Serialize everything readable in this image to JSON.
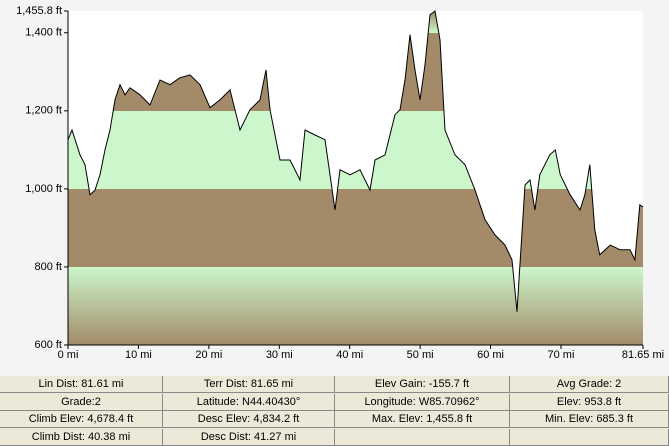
{
  "chart_data": {
    "type": "area",
    "x": [
      0,
      0.57,
      1.7,
      2.41,
      3.12,
      3.83,
      4.54,
      5.25,
      5.96,
      6.67,
      7.38,
      8.09,
      8.8,
      10.22,
      11.64,
      13.06,
      14.48,
      15.9,
      17.32,
      18.74,
      20.16,
      21.58,
      23.0,
      24.42,
      25.84,
      27.26,
      28.12,
      28.68,
      30.1,
      31.52,
      32.94,
      33.65,
      35.07,
      36.49,
      37.2,
      37.91,
      38.62,
      40.04,
      41.46,
      42.88,
      43.59,
      45.01,
      46.43,
      47.14,
      47.85,
      48.56,
      49.27,
      49.98,
      50.69,
      51.4,
      52.11,
      52.82,
      53.53,
      54.95,
      56.37,
      57.79,
      59.21,
      60.63,
      62.05,
      63.05,
      63.76,
      64.19,
      64.9,
      65.6,
      66.3,
      67.0,
      68.4,
      69.2,
      69.9,
      71.3,
      72.7,
      73.4,
      74.1,
      74.8,
      75.5,
      77.0,
      78.4,
      79.8,
      80.5,
      81.2,
      81.65
    ],
    "values": [
      1126,
      1151,
      1087,
      1062,
      985,
      997,
      1036,
      1100,
      1151,
      1228,
      1267,
      1241,
      1259,
      1241,
      1215,
      1279,
      1267,
      1285,
      1292,
      1267,
      1208,
      1228,
      1254,
      1151,
      1203,
      1228,
      1305,
      1203,
      1074,
      1074,
      1023,
      1151,
      1138,
      1126,
      1036,
      946,
      1049,
      1036,
      1049,
      997,
      1074,
      1087,
      1190,
      1203,
      1279,
      1395,
      1305,
      1228,
      1318,
      1446,
      1455.8,
      1382,
      1151,
      1087,
      1062,
      997,
      921,
      882,
      856,
      818,
      685.3,
      808,
      1010,
      1023,
      946,
      1036,
      1087,
      1100,
      1036,
      985,
      946,
      985,
      1062,
      895,
      831,
      856,
      844,
      844,
      818,
      959,
      953.8
    ],
    "line_color": "#000000",
    "band_colors": [
      "#a38a68",
      "#ccf7cc"
    ],
    "xlim": [
      0,
      81.65
    ],
    "xticks": [
      {
        "value": 0,
        "label": "0 mi"
      },
      {
        "value": 10,
        "label": "10 mi"
      },
      {
        "value": 20,
        "label": "20 mi"
      },
      {
        "value": 30,
        "label": "30 mi"
      },
      {
        "value": 40,
        "label": "40 mi"
      },
      {
        "value": 50,
        "label": "50 mi"
      },
      {
        "value": 60,
        "label": "60 mi"
      },
      {
        "value": 70,
        "label": "70 mi"
      },
      {
        "value": 81.65,
        "label": "81.65 mi"
      }
    ],
    "ylim": [
      600,
      1455.8
    ],
    "yticks": [
      {
        "value": 600,
        "label": "600 ft"
      },
      {
        "value": 800,
        "label": "800 ft"
      },
      {
        "value": 1000,
        "label": "1,000 ft"
      },
      {
        "value": 1200,
        "label": "1,200 ft"
      },
      {
        "value": 1400,
        "label": "1,400 ft"
      },
      {
        "value": 1455.8,
        "label": "1,455.8 ft"
      }
    ]
  },
  "stats": {
    "rows": [
      [
        "Lin Dist: 81.61 mi",
        "Terr Dist: 81.65 mi",
        "Elev Gain: -155.7 ft",
        "Avg Grade: 2"
      ],
      [
        "Grade:2",
        "Latitude: N44.40430°",
        "Longitude: W85.70962°",
        "Elev: 953.8 ft"
      ],
      [
        "Climb Elev: 4,678.4 ft",
        "Desc Elev: 4,834.2 ft",
        "Max. Elev: 1,455.8 ft",
        "Min. Elev: 685.3 ft"
      ],
      [
        "Climb Dist: 40.38 mi",
        "Desc Dist: 41.27 mi"
      ]
    ]
  }
}
